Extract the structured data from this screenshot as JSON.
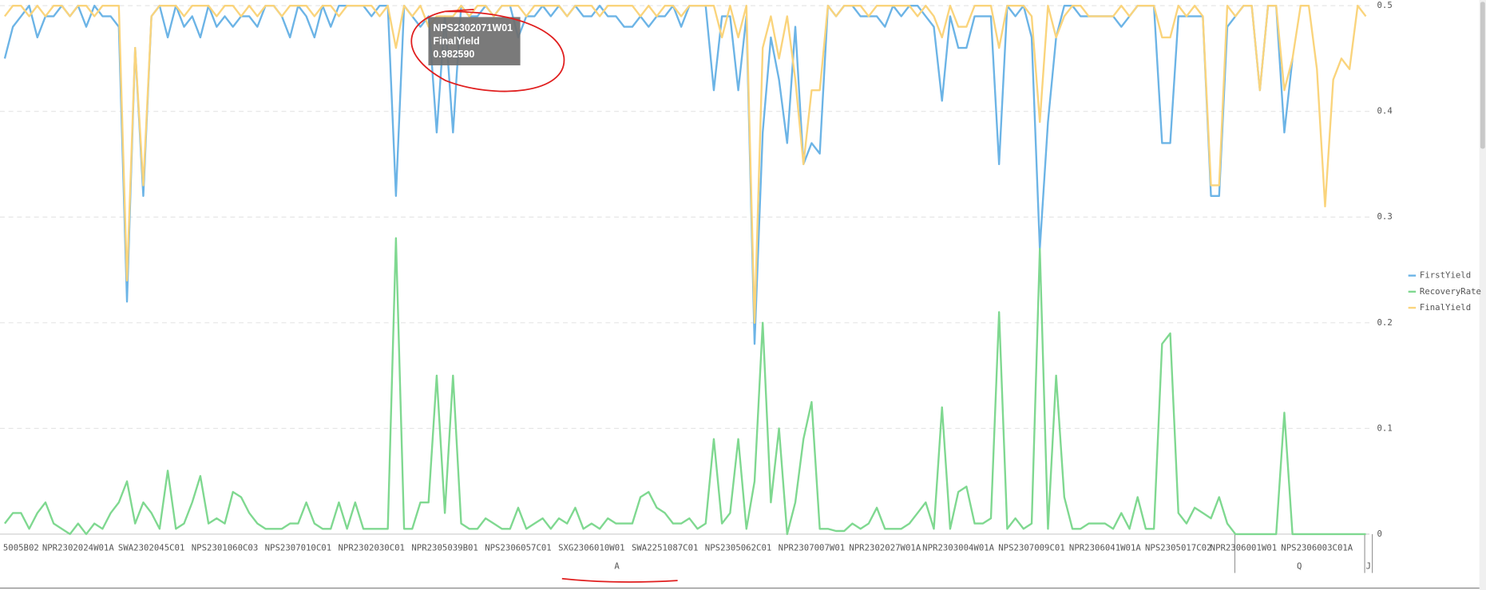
{
  "chart_data": {
    "type": "line",
    "categories": [
      null,
      null,
      "5005B02",
      null,
      null,
      null,
      null,
      null,
      null,
      "NPR2302024W01A",
      null,
      null,
      null,
      null,
      null,
      null,
      null,
      null,
      "SWA2302045C01",
      null,
      null,
      null,
      null,
      null,
      null,
      null,
      null,
      "NPS2301060C03",
      null,
      null,
      null,
      null,
      null,
      null,
      null,
      null,
      "NPS2307010C01",
      null,
      null,
      null,
      null,
      null,
      null,
      null,
      null,
      "NPR2302030C01",
      null,
      null,
      null,
      null,
      null,
      null,
      null,
      null,
      "NPR2305039B01",
      null,
      null,
      null,
      null,
      null,
      null,
      null,
      null,
      "NPS2306057C01",
      null,
      null,
      null,
      null,
      null,
      null,
      null,
      null,
      "SXG2306010W01",
      null,
      null,
      null,
      null,
      null,
      null,
      null,
      null,
      "SWA2251087C01",
      null,
      null,
      null,
      null,
      null,
      null,
      null,
      null,
      "NPS2305062C01",
      null,
      null,
      null,
      null,
      null,
      null,
      null,
      null,
      "NPR2307007W01",
      null,
      null,
      null,
      null,
      null,
      null,
      null,
      null,
      "NPR2302027W01A",
      null,
      null,
      null,
      null,
      null,
      null,
      null,
      null,
      "NPR2303004W01A",
      null,
      null,
      null,
      null,
      null,
      null,
      null,
      null,
      "NPS2307009C01",
      null,
      null,
      null,
      null,
      null,
      null,
      null,
      null,
      "NPR2306041W01A",
      null,
      null,
      null,
      null,
      null,
      null,
      null,
      null,
      "NPS2305017C02",
      null,
      null,
      null,
      null,
      null,
      null,
      null,
      "NPR2306001W01",
      null,
      null,
      null,
      null,
      null,
      null,
      null,
      null,
      "NPS2306003C01A",
      null,
      null,
      null,
      null,
      null,
      null
    ],
    "series": [
      {
        "name": "FirstYield",
        "color": "#6cb4e6",
        "values": [
          0.45,
          0.48,
          0.49,
          0.5,
          0.47,
          0.49,
          0.49,
          0.5,
          0.49,
          0.5,
          0.48,
          0.5,
          0.49,
          0.49,
          0.48,
          0.22,
          0.46,
          0.32,
          0.49,
          0.5,
          0.47,
          0.5,
          0.48,
          0.49,
          0.47,
          0.5,
          0.48,
          0.49,
          0.48,
          0.49,
          0.49,
          0.48,
          0.5,
          0.5,
          0.49,
          0.47,
          0.5,
          0.49,
          0.47,
          0.5,
          0.48,
          0.5,
          0.5,
          0.5,
          0.5,
          0.49,
          0.5,
          0.5,
          0.32,
          0.5,
          0.49,
          0.48,
          0.49,
          0.38,
          0.49,
          0.38,
          0.5,
          0.49,
          0.49,
          0.5,
          0.49,
          0.5,
          0.5,
          0.47,
          0.49,
          0.49,
          0.5,
          0.49,
          0.5,
          0.49,
          0.5,
          0.49,
          0.49,
          0.5,
          0.49,
          0.49,
          0.48,
          0.48,
          0.49,
          0.48,
          0.49,
          0.49,
          0.5,
          0.48,
          0.5,
          0.5,
          0.5,
          0.42,
          0.49,
          0.49,
          0.42,
          0.49,
          0.18,
          0.38,
          0.47,
          0.43,
          0.37,
          0.48,
          0.35,
          0.37,
          0.36,
          0.5,
          0.49,
          0.5,
          0.5,
          0.49,
          0.49,
          0.49,
          0.48,
          0.5,
          0.49,
          0.5,
          0.5,
          0.49,
          0.48,
          0.41,
          0.49,
          0.46,
          0.46,
          0.49,
          0.49,
          0.49,
          0.35,
          0.5,
          0.49,
          0.5,
          0.47,
          0.27,
          0.39,
          0.47,
          0.5,
          0.5,
          0.49,
          0.49,
          0.49,
          0.49,
          0.49,
          0.48,
          0.49,
          0.5,
          0.5,
          0.5,
          0.37,
          0.37,
          0.49,
          0.49,
          0.49,
          0.49,
          0.32,
          0.32,
          0.48,
          0.49,
          0.5,
          0.5,
          0.42,
          0.5,
          0.5,
          0.38,
          0.45,
          null,
          null,
          null,
          null,
          null,
          null,
          null,
          null,
          null
        ]
      },
      {
        "name": "RecoveryRate",
        "color": "#7fd890",
        "values": [
          0.01,
          0.02,
          0.02,
          0.005,
          0.02,
          0.03,
          0.01,
          0.005,
          0.0,
          0.01,
          0.0,
          0.01,
          0.005,
          0.02,
          0.03,
          0.05,
          0.01,
          0.03,
          0.02,
          0.005,
          0.06,
          0.005,
          0.01,
          0.03,
          0.055,
          0.01,
          0.015,
          0.01,
          0.04,
          0.035,
          0.02,
          0.01,
          0.005,
          0.005,
          0.005,
          0.01,
          0.01,
          0.03,
          0.01,
          0.005,
          0.005,
          0.03,
          0.005,
          0.03,
          0.005,
          0.005,
          0.005,
          0.005,
          0.28,
          0.005,
          0.005,
          0.03,
          0.03,
          0.15,
          0.02,
          0.15,
          0.01,
          0.005,
          0.005,
          0.015,
          0.01,
          0.005,
          0.005,
          0.025,
          0.005,
          0.01,
          0.015,
          0.005,
          0.015,
          0.01,
          0.025,
          0.005,
          0.01,
          0.005,
          0.015,
          0.01,
          0.01,
          0.01,
          0.035,
          0.04,
          0.025,
          0.02,
          0.01,
          0.01,
          0.015,
          0.005,
          0.01,
          0.09,
          0.01,
          0.02,
          0.09,
          0.005,
          0.05,
          0.2,
          0.03,
          0.1,
          0.0,
          0.03,
          0.09,
          0.125,
          0.005,
          0.005,
          0.003,
          0.003,
          0.01,
          0.005,
          0.01,
          0.025,
          0.005,
          0.005,
          0.005,
          0.01,
          0.02,
          0.03,
          0.005,
          0.12,
          0.005,
          0.04,
          0.045,
          0.01,
          0.01,
          0.015,
          0.21,
          0.005,
          0.015,
          0.005,
          0.01,
          0.27,
          0.005,
          0.15,
          0.035,
          0.005,
          0.005,
          0.01,
          0.01,
          0.01,
          0.005,
          0.02,
          0.005,
          0.035,
          0.005,
          0.005,
          0.18,
          0.19,
          0.02,
          0.01,
          0.025,
          0.02,
          0.015,
          0.035,
          0.01,
          0.0,
          0.0,
          0.0,
          0.0,
          0.0,
          0.0,
          0.115,
          0.0,
          0.0,
          0.0,
          0.0,
          0.0,
          0.0,
          0.0,
          0.0,
          0.0,
          0.0
        ]
      },
      {
        "name": "FinalYield",
        "color": "#fad47c",
        "values": [
          0.49,
          0.5,
          0.5,
          0.49,
          0.5,
          0.49,
          0.5,
          0.5,
          0.49,
          0.5,
          0.5,
          0.49,
          0.5,
          0.5,
          0.5,
          0.24,
          0.46,
          0.33,
          0.49,
          0.5,
          0.5,
          0.5,
          0.49,
          0.5,
          0.5,
          0.5,
          0.49,
          0.5,
          0.5,
          0.49,
          0.5,
          0.49,
          0.5,
          0.5,
          0.49,
          0.5,
          0.5,
          0.5,
          0.49,
          0.5,
          0.5,
          0.49,
          0.5,
          0.5,
          0.5,
          0.5,
          0.49,
          0.5,
          0.46,
          0.5,
          0.49,
          0.5,
          0.48,
          0.49,
          0.49,
          0.49,
          0.5,
          0.49,
          0.5,
          0.5,
          0.49,
          0.5,
          0.5,
          0.5,
          0.49,
          0.5,
          0.5,
          0.5,
          0.5,
          0.49,
          0.5,
          0.5,
          0.5,
          0.49,
          0.5,
          0.5,
          0.5,
          0.5,
          0.49,
          0.5,
          0.49,
          0.5,
          0.5,
          0.49,
          0.5,
          0.5,
          0.5,
          0.5,
          0.47,
          0.5,
          0.47,
          0.5,
          0.2,
          0.46,
          0.49,
          0.45,
          0.49,
          0.43,
          0.35,
          0.42,
          0.42,
          0.5,
          0.49,
          0.5,
          0.5,
          0.5,
          0.49,
          0.5,
          0.5,
          0.5,
          0.5,
          0.5,
          0.49,
          0.5,
          0.49,
          0.47,
          0.5,
          0.48,
          0.48,
          0.5,
          0.5,
          0.5,
          0.46,
          0.5,
          0.5,
          0.5,
          0.49,
          0.39,
          0.5,
          0.47,
          0.49,
          0.5,
          0.5,
          0.49,
          0.49,
          0.49,
          0.49,
          0.5,
          0.49,
          0.5,
          0.5,
          0.5,
          0.47,
          0.47,
          0.5,
          0.49,
          0.5,
          0.49,
          0.33,
          0.33,
          0.5,
          0.49,
          0.5,
          0.5,
          0.42,
          0.5,
          0.5,
          0.42,
          0.45,
          0.5,
          0.5,
          0.44,
          0.31,
          0.43,
          0.45,
          0.44,
          0.5,
          0.49
        ]
      }
    ],
    "ylim": [
      0,
      0.5
    ],
    "yticks": [
      0,
      0.1,
      0.2,
      0.3,
      0.4,
      0.5
    ],
    "grid": true,
    "groups": [
      "A",
      "Q",
      "J"
    ],
    "tooltip": {
      "category": "NPS2302071W01",
      "series": "FinalYield",
      "value": "0.982590"
    }
  }
}
